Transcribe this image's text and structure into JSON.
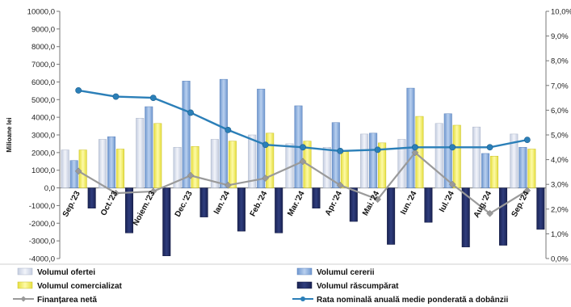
{
  "chart_data": {
    "type": "bar",
    "ylabel": "Milioane lei",
    "ylim": [
      -4000,
      10000
    ],
    "y2lim": [
      0,
      10
    ],
    "y_ticks": [
      "10000,0",
      "9000,0",
      "8000,0",
      "7000,0",
      "6000,0",
      "5000,0",
      "4000,0",
      "3000,0",
      "2000,0",
      "1000,0",
      "0,0",
      "-1000,0",
      "-2000,0",
      "-3000,0",
      "-4000,0"
    ],
    "y2_ticks": [
      "10,0%",
      "9,0%",
      "8,0%",
      "7,0%",
      "6,0%",
      "5,0%",
      "4,0%",
      "3,0%",
      "2,0%",
      "1,0%",
      "0,0%"
    ],
    "categories": [
      "Sep.'23",
      "Oct.'23",
      "Noiem.'23",
      "Dec.'23",
      "Ian.'24",
      "Feb.'24",
      "Mar.'24",
      "Apr.'24",
      "Mai.'24",
      "Iun.'24",
      "Iul.'24",
      "Aug.'24",
      "Sep.'24"
    ],
    "grid": false,
    "legend_position": "bottom",
    "series": [
      {
        "name": "Volumul ofertei",
        "kind": "bar",
        "axis": "left",
        "color": "#dde3f0",
        "values": [
          2150,
          2750,
          3950,
          2300,
          2750,
          3000,
          2500,
          2300,
          3050,
          2750,
          3650,
          3450,
          3050
        ]
      },
      {
        "name": "Volumul cererii",
        "kind": "bar",
        "axis": "left",
        "color": "#8fb2e0",
        "values": [
          1550,
          2900,
          4600,
          6050,
          6150,
          5600,
          4650,
          3700,
          3100,
          5650,
          4200,
          1950,
          2300
        ]
      },
      {
        "name": "Volumul comercializat",
        "kind": "bar",
        "axis": "left",
        "color": "#f5f06a",
        "values": [
          2150,
          2200,
          3650,
          2350,
          2650,
          3100,
          2650,
          2050,
          2550,
          4050,
          3550,
          1800,
          2200
        ]
      },
      {
        "name": "Volumul răscumpărat",
        "kind": "bar",
        "axis": "left",
        "color": "#1f2a5e",
        "values": [
          -1150,
          -2550,
          -3850,
          -1650,
          -2450,
          -2550,
          -1150,
          -1900,
          -3200,
          -1950,
          -3350,
          -3250,
          -2350
        ]
      },
      {
        "name": "Finanțarea netă",
        "kind": "line",
        "axis": "left",
        "color": "#9a9a9a",
        "values": [
          950,
          -300,
          -200,
          700,
          150,
          550,
          1500,
          150,
          -650,
          2000,
          200,
          -1450,
          -150
        ]
      },
      {
        "name": "Rata nominală anuală medie ponderată a dobânzii",
        "kind": "line",
        "axis": "right",
        "color": "#2b7fb8",
        "values": [
          6.8,
          6.55,
          6.5,
          5.9,
          5.2,
          4.6,
          4.5,
          4.35,
          4.4,
          4.5,
          4.5,
          4.5,
          4.8
        ]
      }
    ]
  }
}
